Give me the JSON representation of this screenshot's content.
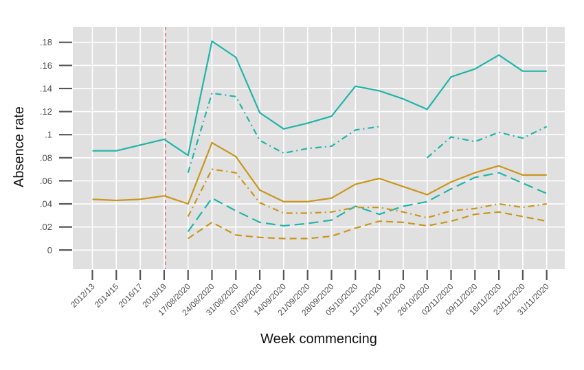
{
  "chart_data": {
    "type": "line",
    "xlabel": "Week commencing",
    "ylabel": "Absence rate",
    "ylim": [
      -0.0165,
      0.1935
    ],
    "yticks": [
      0,
      0.02,
      0.04,
      0.06,
      0.08,
      0.1,
      0.12,
      0.14,
      0.16,
      0.18
    ],
    "ytick_labels": [
      "0",
      ".02",
      ".04",
      ".06",
      ".08",
      ".1",
      ".12",
      ".14",
      ".16",
      ".18"
    ],
    "categories": [
      "2012/13",
      "2014/15",
      "2016/17",
      "2018/19",
      "17/08/2020",
      "24/08/2020",
      "31/08/2020",
      "07/09/2020",
      "14/09/2020",
      "21/09/2020",
      "28/09/2020",
      "05/10/2020",
      "12/10/2020",
      "19/10/2020",
      "26/10/2020",
      "02/11/2020",
      "09/11/2020",
      "16/11/2020",
      "23/11/2020",
      "31/11/2020"
    ],
    "reference_line": {
      "category": "2018/19",
      "color": "#e8747c",
      "style": "dashed"
    },
    "grid": true,
    "background": "#e0e0e0",
    "colors": {
      "teal": "#1fb5a8",
      "gold": "#c9961a"
    },
    "series": [
      {
        "color": "#1fb5a8",
        "dash": "solid",
        "values": [
          0.086,
          0.086,
          0.091,
          0.096,
          0.082,
          0.181,
          0.167,
          0.119,
          0.105,
          0.11,
          0.116,
          0.142,
          0.138,
          0.131,
          0.122,
          0.15,
          0.157,
          0.169,
          0.155,
          0.155
        ]
      },
      {
        "color": "#1fb5a8",
        "dash": "dashdot",
        "values": [
          null,
          null,
          null,
          null,
          0.067,
          0.136,
          0.133,
          0.095,
          0.084,
          0.088,
          0.09,
          0.104,
          0.107,
          null,
          0.08,
          0.098,
          0.094,
          0.102,
          0.097,
          0.107
        ]
      },
      {
        "color": "#1fb5a8",
        "dash": "longdash",
        "values": [
          null,
          null,
          null,
          null,
          0.016,
          0.045,
          0.034,
          0.024,
          0.021,
          0.023,
          0.026,
          0.038,
          0.031,
          0.038,
          0.042,
          0.053,
          0.063,
          0.067,
          0.058,
          0.049
        ]
      },
      {
        "color": "#c9961a",
        "dash": "solid",
        "values": [
          0.044,
          0.043,
          0.044,
          0.047,
          0.04,
          0.093,
          0.081,
          0.052,
          0.042,
          0.042,
          0.045,
          0.057,
          0.062,
          0.055,
          0.048,
          0.059,
          0.067,
          0.073,
          0.065,
          0.065
        ]
      },
      {
        "color": "#c9961a",
        "dash": "dashdot",
        "values": [
          null,
          null,
          null,
          null,
          0.029,
          0.07,
          0.067,
          0.041,
          0.032,
          0.032,
          0.033,
          0.037,
          0.037,
          0.033,
          0.028,
          0.034,
          0.036,
          0.04,
          0.037,
          0.04
        ]
      },
      {
        "color": "#c9961a",
        "dash": "dashed",
        "values": [
          null,
          null,
          null,
          null,
          0.01,
          0.024,
          0.013,
          0.011,
          0.01,
          0.01,
          0.012,
          0.019,
          0.025,
          0.024,
          0.021,
          0.025,
          0.031,
          0.033,
          0.029,
          0.025
        ]
      }
    ]
  }
}
